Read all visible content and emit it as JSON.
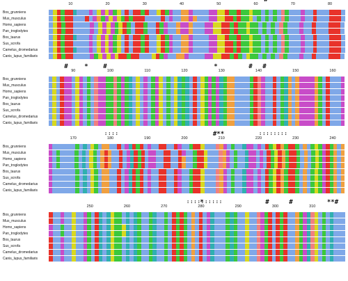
{
  "blocks": [
    {
      "ruler": [
        "10",
        "20",
        "30",
        "40",
        "50",
        "60",
        "70",
        "80"
      ],
      "marks": [
        "#"
      ],
      "colons": "",
      "rows": [
        {
          "species": "Bos_grunniens",
          "seq": "MPKSKKHAAVEAPEPETPFKAKKNKAAPKNEAAGGEAVLVEDPPKQTKTSPSSATLNICSWVVDALRAWFKKKL"
        },
        {
          "species": "Mus_musculus",
          "seq": "MPKSKKAAARADGSEPEPTKSKKKAAVVKAEAAGGDGVLVEDPPKRTKSSPASATLNICSWVVDALRAWFKKKL"
        },
        {
          "species": "Homo_sapiens",
          "seq": "MPKSKKAVAAEAPEPETPKNAKKTAAKNEAAGEDGVLVEDPPKRQKTSPSSATLNICSWVVDALRAWFKKKL"
        },
        {
          "species": "Pan_troglodytes",
          "seq": "MPKSKKAVAAEAPEPETPKNAKKTAAKNEAAGEDGVLVEDPPKRQKTSPSSATLNICSWVVDALRAWFKKKL"
        },
        {
          "species": "Bos_taurus",
          "seq": "MPKSKKHAAVEAPEPETPFKAKKNKAAPKNEAAGGEAVLVEDPPKQTKTSPSSATLNICSWVVDALRAWFKKKL"
        },
        {
          "species": "Sus_scrofa",
          "seq": "MPKSKKAAVVEAPEPETPFKAKKNKAAPKNEAAGGEAVLVEDPPKRTKTSPSSATLNICSWVVDALRAWFKKKL"
        },
        {
          "species": "Camelus_dromedarius",
          "seq": "MPKSKKHAAVEAPEPETPFKAKKNKAAPKNEAAGGEAVLVEDPPKRTKTSPSSATLNICSWVVDALRAWFKKKL"
        },
        {
          "species": "Canis_lupus_familiaris",
          "seq": "MPKSKKAAAAESPEPEPKKSKKAAAPKNEAAGGEAVLVEDPPKRTKTAPSSATLNICSWVVDALRAWFKKKL"
        }
      ]
    },
    {
      "ruler": [
        "90",
        "100",
        "110",
        "120",
        "130",
        "140",
        "150",
        "160"
      ],
      "marks": [
        "#",
        "*",
        "#",
        "*",
        "#",
        "#"
      ],
      "colons": "",
      "rows": [
        {
          "species": "Bos_grunniens",
          "seq": "WPVKEEAPDLSLCDETNCSENHLPAELQEPLSLPHQYWRAPSDNEYSGGWLLLSRCDFLKVSYGIGEEDDGSVRVIAE"
        },
        {
          "species": "Mus_musculus",
          "seq": "WPVKEEAPDLSLCDETNCSENHLPAELQEPLSLPHQYWRAPSDNEYSGGWLLLSRCDFLKVSYGIGEEDDGSVRVIAE"
        },
        {
          "species": "Homo_sapiens",
          "seq": "WPVKEEAPDLSLCDETNCSENHLPAELQEPLSLPHQYWRAPSDNEYSGGWLLLSRCDFLKVSYGIGEEDDGSVRVIAE"
        },
        {
          "species": "Pan_troglodytes",
          "seq": "WPVKEEAPDLSLCDETNCSENHLPAELQEPLSLPHQYWRAPSDNEYSGGWLLLSRCDFLKVSYGIGEEDDGSVRVIAE"
        },
        {
          "species": "Bos_taurus",
          "seq": "WPVKEEAPDLSLCDETNCSENHLPAELQEPLSLPHQYWRAPSDNEYSGGWLLLSRCDFLKVSYGIGEEDDGSVRVIAE"
        },
        {
          "species": "Sus_scrofa",
          "seq": "WPVKEEAPDLSLCDETNCSENHLPAELQEPLSLPHQYWRAPSDNEYSGGWLLLSRCDFLKVSYGIGEEDDGSVRVIAE"
        },
        {
          "species": "Camelus_dromedarius",
          "seq": "WPVKEEAPDLSLCDETNCSENHLPAELQEPLSLPHQYWRAPSDNEYSGGWLLLSRCDFLKVSYGIGEEDDGSVRVIAE"
        },
        {
          "species": "Canis_lupus_familiaris",
          "seq": "WPVKEEAPDLSLCDETNCSENHLPAELQEPLSLPHQYWRAPSDNEYSGGWLLLSRCDFLKVSYGIGEEDDGSVRVIAE"
        }
      ]
    },
    {
      "ruler": [
        "170",
        "180",
        "190",
        "200",
        "210",
        "220",
        "230",
        "240"
      ],
      "marks": [
        "#**"
      ],
      "colons": "::::",
      "colons2": "::::::::",
      "rows": [
        {
          "species": "Bos_grunniens",
          "seq": "DFAFVLVTAYVPNAGGLVRLEYRQKWDAFRKFLKDLASRKPLVLCGDLNVAHEEIDLRNPKGNKKNAGFTPQERQGFG"
        },
        {
          "species": "Mus_musculus",
          "seq": "DFSFVLVTAYVPNAGRGLVRLEYRQRWDEAFRKFLKDLASRKPLVLCGDLNVAHEEIDLRNPKGNKKNAGFTPQERQGFG"
        },
        {
          "species": "Homo_sapiens",
          "seq": "DFSFVLVTAYVPNAGRGLVRLEYRQRWDEAFRKFLKGLASRKPLVLCGDLNVAHEEIDLRNPKGNKKNAGFTPQERQGFG"
        },
        {
          "species": "Pan_troglodytes",
          "seq": "DFSFVLVTAYVPNAGRGLVRLEYRQRWDEAFRKFLKGLASRKPLVLCGDLNVAHEEIDLRNPKGNKKNAGFTPQERQGFG"
        },
        {
          "species": "Bos_taurus",
          "seq": "DFAFVLVTAYVPNAGGLVRLEYRQKWDAFRKFLKDLASRKPLVLCGDLNVAHEEIDLRNPKGNKKNAGFTPQERQGFG"
        },
        {
          "species": "Sus_scrofa",
          "seq": "DFAFVLVTAYVPNAGGLVRLEYRQKWDAFRKFLKDLASRKPLVLCGDLNVAHEEIDLRNPKGNKKNAGFTPQERQGFG"
        },
        {
          "species": "Camelus_dromedarius",
          "seq": "DFAFVLVTAYVPNAGGLVRLEYRQKWDAFRKFLKDLASRKPLVLCGDLNVAHEEIDLRNPKGNKKNAGFTPQERQGFG"
        },
        {
          "species": "Canis_lupus_familiaris",
          "seq": "DFAFVLVTAYVPNAGGLVRLEYRQKWDAFRKFLKDLASRKPLVLCGDLNVAHEEIDLRNPKGNKKNAGFTPQERQGFG"
        }
      ]
    },
    {
      "ruler": [
        "250",
        "260",
        "270",
        "280",
        "290",
        "300",
        "310"
      ],
      "marks": [
        "*",
        "#",
        "#",
        "**#"
      ],
      "colons": "::::::::::",
      "rows": [
        {
          "species": "Bos_grunniens",
          "seq": "KLLDAVPLADSFRHLYPNTAYAYTFWTYMMNARSKNVGWRLDYFLLSHSLLPALCDSKIRSKALGSDHCPITLYLAL"
        },
        {
          "species": "Mus_musculus",
          "seq": "KLLEAVPLADSFRHLYPNTAYAYTFWTYMMNARSKNVGWRLDYFLLSHSLLPALCDSKIRSKALGSDHCPITLYLAL"
        },
        {
          "species": "Homo_sapiens",
          "seq": "ELLQAVPLADSFRHLYPNTPYAYTFWTYMMNARSKNVGWRLDYFLLSHSLLPALCDSKIRSKALGSDHCPITLYLAL"
        },
        {
          "species": "Pan_troglodytes",
          "seq": "ELLQAVPLADSFRHLYPNTPYAYTFWTYMMNARSKNVGWRLDYFLLSHSLLPALCDSKIRSKALGSDHCPITLYLAL"
        },
        {
          "species": "Bos_taurus",
          "seq": "KLLDAVPLADSFRHLYPNTAYAYTFWTYMMNARSKNVGWRLDYFLLSHSLLPALCDSKIRSKALGSDHCPITLYLAL"
        },
        {
          "species": "Sus_scrofa",
          "seq": "KLLDAVPLADSFRHLYPNTAYAYTFWTYMMNARSKNVGWRLDYFLLSHSLLPALCDSKIRSKALGSDHCPITLYLAL"
        },
        {
          "species": "Camelus_dromedarius",
          "seq": "KLLDAVPLADSFRHLYPNTAYAYTFWTYMMNARSKNVGWRLDYFLLSHSLLPALCDSKIRSKALGSDHCPITLYLAL"
        },
        {
          "species": "Canis_lupus_familiaris",
          "seq": "KLLDAVPLADSFRHLYPNTAYAYTFWTYMMNARSKNVGWRLDYFLLSHSLLPALCDSKIRSKALGSDHCPITLYLAL"
        }
      ]
    }
  ],
  "residue_colors": {
    "A": "#7fa8e8",
    "I": "#7fa8e8",
    "L": "#7fa8e8",
    "M": "#7fa8e8",
    "F": "#7fa8e8",
    "W": "#7fa8e8",
    "V": "#7fa8e8",
    "C": "#f08080",
    "K": "#e8322a",
    "R": "#e8322a",
    "E": "#c84cc8",
    "D": "#c84cc8",
    "N": "#3cc83c",
    "Q": "#3cc83c",
    "S": "#3cc83c",
    "T": "#3cc83c",
    "G": "#f0a040",
    "P": "#d8d820",
    "H": "#30b0b0",
    "Y": "#30b0b0",
    "-": "#ffffff"
  }
}
